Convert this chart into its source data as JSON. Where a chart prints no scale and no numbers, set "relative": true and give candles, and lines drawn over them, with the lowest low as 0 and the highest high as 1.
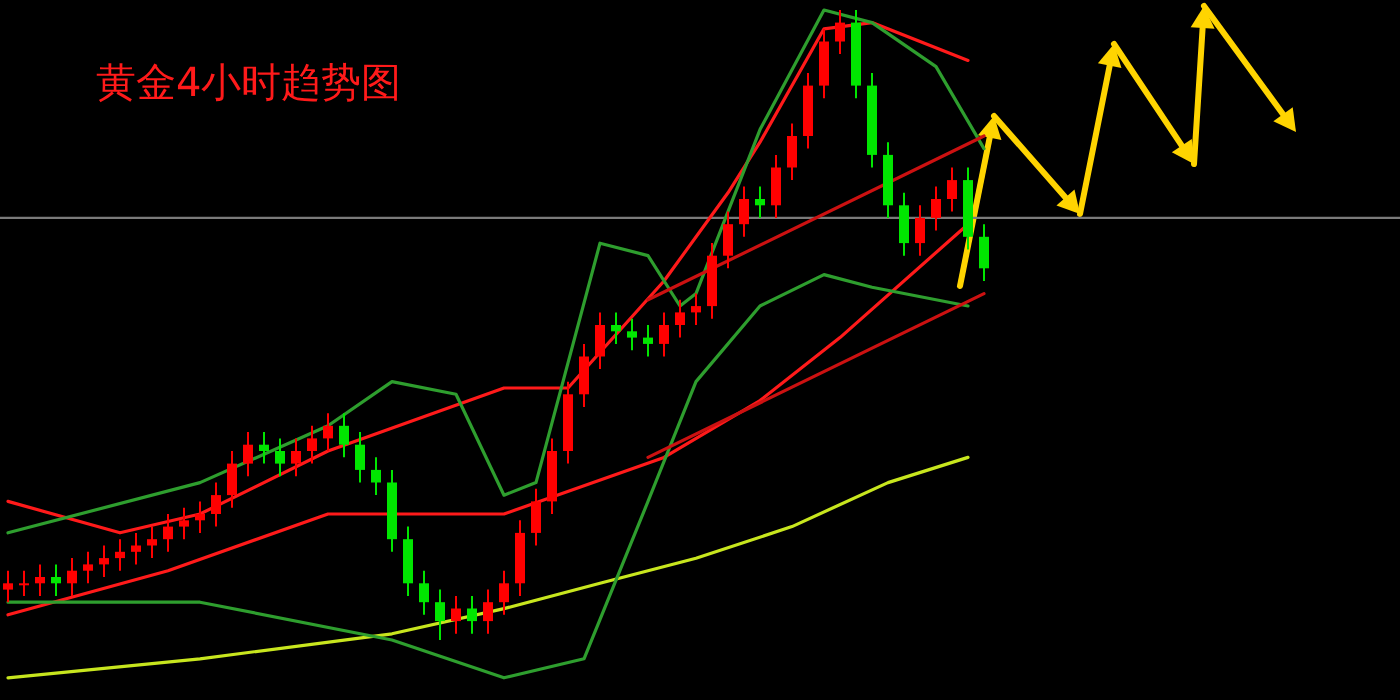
{
  "chart_data": {
    "type": "candlestick",
    "title": "黄金4小时趋势图",
    "relative": true,
    "categories": [
      null,
      null,
      null,
      null,
      null,
      null,
      null,
      null,
      null,
      null,
      null,
      null,
      null,
      null,
      null,
      null,
      null,
      null,
      null,
      null,
      null,
      null,
      null,
      null,
      null,
      null,
      null,
      null,
      null,
      null,
      null,
      null,
      null,
      null,
      null,
      null,
      null,
      null,
      null,
      null,
      null,
      null,
      null,
      null,
      null,
      null,
      null,
      null,
      null,
      null,
      null,
      null,
      null,
      null,
      null,
      null,
      null,
      null,
      null,
      null,
      null,
      null
    ],
    "ohlc": [
      [
        0.08,
        0.11,
        0.06,
        0.09
      ],
      [
        0.09,
        0.11,
        0.07,
        0.09
      ],
      [
        0.09,
        0.12,
        0.07,
        0.1
      ],
      [
        0.1,
        0.12,
        0.07,
        0.09
      ],
      [
        0.09,
        0.13,
        0.07,
        0.11
      ],
      [
        0.11,
        0.14,
        0.09,
        0.12
      ],
      [
        0.12,
        0.15,
        0.1,
        0.13
      ],
      [
        0.13,
        0.16,
        0.11,
        0.14
      ],
      [
        0.14,
        0.17,
        0.12,
        0.15
      ],
      [
        0.15,
        0.18,
        0.13,
        0.16
      ],
      [
        0.16,
        0.2,
        0.14,
        0.18
      ],
      [
        0.18,
        0.21,
        0.16,
        0.19
      ],
      [
        0.19,
        0.22,
        0.17,
        0.2
      ],
      [
        0.2,
        0.25,
        0.18,
        0.23
      ],
      [
        0.23,
        0.3,
        0.21,
        0.28
      ],
      [
        0.28,
        0.33,
        0.26,
        0.31
      ],
      [
        0.31,
        0.33,
        0.28,
        0.3
      ],
      [
        0.3,
        0.32,
        0.26,
        0.28
      ],
      [
        0.28,
        0.32,
        0.26,
        0.3
      ],
      [
        0.3,
        0.34,
        0.28,
        0.32
      ],
      [
        0.32,
        0.36,
        0.3,
        0.34
      ],
      [
        0.34,
        0.36,
        0.29,
        0.31
      ],
      [
        0.31,
        0.33,
        0.25,
        0.27
      ],
      [
        0.27,
        0.29,
        0.23,
        0.25
      ],
      [
        0.25,
        0.27,
        0.14,
        0.16
      ],
      [
        0.16,
        0.18,
        0.07,
        0.09
      ],
      [
        0.09,
        0.11,
        0.04,
        0.06
      ],
      [
        0.06,
        0.08,
        0.0,
        0.03
      ],
      [
        0.03,
        0.07,
        0.01,
        0.05
      ],
      [
        0.05,
        0.07,
        0.01,
        0.03
      ],
      [
        0.03,
        0.08,
        0.01,
        0.06
      ],
      [
        0.06,
        0.11,
        0.04,
        0.09
      ],
      [
        0.09,
        0.19,
        0.07,
        0.17
      ],
      [
        0.17,
        0.24,
        0.15,
        0.22
      ],
      [
        0.22,
        0.32,
        0.2,
        0.3
      ],
      [
        0.3,
        0.41,
        0.28,
        0.39
      ],
      [
        0.39,
        0.47,
        0.37,
        0.45
      ],
      [
        0.45,
        0.52,
        0.43,
        0.5
      ],
      [
        0.5,
        0.52,
        0.47,
        0.49
      ],
      [
        0.49,
        0.51,
        0.46,
        0.48
      ],
      [
        0.48,
        0.5,
        0.45,
        0.47
      ],
      [
        0.47,
        0.52,
        0.45,
        0.5
      ],
      [
        0.5,
        0.54,
        0.48,
        0.52
      ],
      [
        0.52,
        0.55,
        0.5,
        0.53
      ],
      [
        0.53,
        0.63,
        0.51,
        0.61
      ],
      [
        0.61,
        0.68,
        0.59,
        0.66
      ],
      [
        0.66,
        0.72,
        0.64,
        0.7
      ],
      [
        0.7,
        0.72,
        0.67,
        0.69
      ],
      [
        0.69,
        0.77,
        0.67,
        0.75
      ],
      [
        0.75,
        0.82,
        0.73,
        0.8
      ],
      [
        0.8,
        0.9,
        0.78,
        0.88
      ],
      [
        0.88,
        0.97,
        0.86,
        0.95
      ],
      [
        0.95,
        1.0,
        0.93,
        0.98
      ],
      [
        0.98,
        1.0,
        0.86,
        0.88
      ],
      [
        0.88,
        0.9,
        0.75,
        0.77
      ],
      [
        0.77,
        0.79,
        0.67,
        0.69
      ],
      [
        0.69,
        0.71,
        0.61,
        0.63
      ],
      [
        0.63,
        0.69,
        0.61,
        0.67
      ],
      [
        0.67,
        0.72,
        0.65,
        0.7
      ],
      [
        0.7,
        0.75,
        0.68,
        0.73
      ],
      [
        0.73,
        0.75,
        0.62,
        0.64
      ],
      [
        0.64,
        0.66,
        0.57,
        0.59
      ]
    ],
    "series": [
      {
        "type": "line",
        "color": "#c8e61e",
        "values": [
          -0.06,
          null,
          null,
          null,
          null,
          null,
          null,
          null,
          null,
          null,
          null,
          null,
          -0.03,
          null,
          null,
          null,
          null,
          null,
          null,
          null,
          null,
          null,
          null,
          null,
          0.01,
          null,
          null,
          null,
          null,
          null,
          null,
          0.05,
          null,
          null,
          null,
          null,
          null,
          0.09,
          null,
          null,
          null,
          null,
          null,
          0.13,
          null,
          null,
          null,
          null,
          null,
          0.18,
          null,
          null,
          null,
          null,
          null,
          0.25,
          null,
          null,
          null,
          null,
          0.29,
          null
        ]
      },
      {
        "type": "line",
        "color": "#ff1a1a",
        "values": [
          0.04,
          null,
          null,
          null,
          null,
          null,
          null,
          null,
          null,
          null,
          0.11,
          null,
          null,
          null,
          null,
          null,
          null,
          null,
          null,
          null,
          0.2,
          null,
          null,
          null,
          null,
          null,
          null,
          null,
          null,
          null,
          null,
          0.2,
          null,
          null,
          null,
          null,
          null,
          null,
          null,
          null,
          null,
          0.29,
          null,
          null,
          null,
          null,
          null,
          0.38,
          null,
          null,
          null,
          null,
          0.48,
          null,
          null,
          null,
          null,
          null,
          null,
          null,
          0.66,
          null
        ]
      },
      {
        "type": "line",
        "color": "#ff1a1a",
        "values": [
          0.22,
          null,
          null,
          null,
          null,
          null,
          null,
          0.17,
          null,
          null,
          null,
          null,
          0.2,
          null,
          null,
          null,
          null,
          null,
          null,
          null,
          0.3,
          null,
          null,
          null,
          null,
          null,
          null,
          null,
          null,
          null,
          null,
          0.4,
          null,
          null,
          null,
          0.4,
          null,
          null,
          null,
          null,
          null,
          0.57,
          null,
          null,
          null,
          0.71,
          null,
          0.79,
          null,
          null,
          null,
          0.97,
          null,
          null,
          0.98,
          null,
          null,
          null,
          null,
          null,
          0.92,
          null
        ]
      },
      {
        "type": "line",
        "color": "#2e9e2e",
        "values": [
          0.17,
          null,
          null,
          null,
          null,
          null,
          null,
          null,
          null,
          null,
          null,
          null,
          0.25,
          null,
          null,
          null,
          null,
          null,
          null,
          null,
          0.34,
          null,
          null,
          null,
          0.41,
          null,
          null,
          null,
          0.39,
          null,
          null,
          0.23,
          null,
          0.25,
          null,
          null,
          null,
          0.63,
          null,
          null,
          0.61,
          null,
          0.53,
          0.55,
          null,
          null,
          null,
          0.81,
          null,
          null,
          null,
          1.0,
          null,
          null,
          0.98,
          null,
          null,
          null,
          0.91,
          null,
          null,
          0.78
        ]
      },
      {
        "type": "line",
        "color": "#2e9e2e",
        "values": [
          0.06,
          null,
          null,
          null,
          null,
          null,
          null,
          null,
          null,
          null,
          null,
          null,
          0.06,
          null,
          null,
          null,
          null,
          null,
          null,
          null,
          null,
          null,
          null,
          null,
          0.0,
          null,
          null,
          null,
          null,
          null,
          null,
          -0.06,
          null,
          null,
          null,
          null,
          -0.03,
          null,
          null,
          null,
          0.22,
          null,
          null,
          0.41,
          null,
          null,
          null,
          0.53,
          null,
          null,
          null,
          0.58,
          null,
          null,
          0.56,
          null,
          null,
          null,
          null,
          null,
          0.53,
          null
        ]
      },
      {
        "type": "line",
        "color": "#cc1111",
        "values": [
          null,
          null,
          null,
          null,
          null,
          null,
          null,
          null,
          null,
          null,
          null,
          null,
          null,
          null,
          null,
          null,
          null,
          null,
          null,
          null,
          null,
          null,
          null,
          null,
          null,
          null,
          null,
          null,
          null,
          null,
          null,
          null,
          null,
          null,
          null,
          null,
          null,
          null,
          null,
          null,
          0.29,
          null,
          null,
          null,
          null,
          null,
          null,
          null,
          null,
          null,
          null,
          null,
          null,
          null,
          null,
          null,
          null,
          null,
          null,
          null,
          null,
          0.55
        ]
      },
      {
        "type": "line",
        "color": "#cc1111",
        "values": [
          null,
          null,
          null,
          null,
          null,
          null,
          null,
          null,
          null,
          null,
          null,
          null,
          null,
          null,
          null,
          null,
          null,
          null,
          null,
          null,
          null,
          null,
          null,
          null,
          null,
          null,
          null,
          null,
          null,
          null,
          null,
          null,
          null,
          null,
          null,
          null,
          null,
          null,
          null,
          null,
          0.54,
          null,
          null,
          null,
          null,
          null,
          null,
          null,
          null,
          null,
          null,
          null,
          null,
          null,
          null,
          null,
          null,
          null,
          null,
          null,
          null,
          0.8
        ]
      }
    ],
    "ref_lines": [
      {
        "axis": "y",
        "value": 0.67,
        "color": "#7a7a7a"
      }
    ]
  }
}
